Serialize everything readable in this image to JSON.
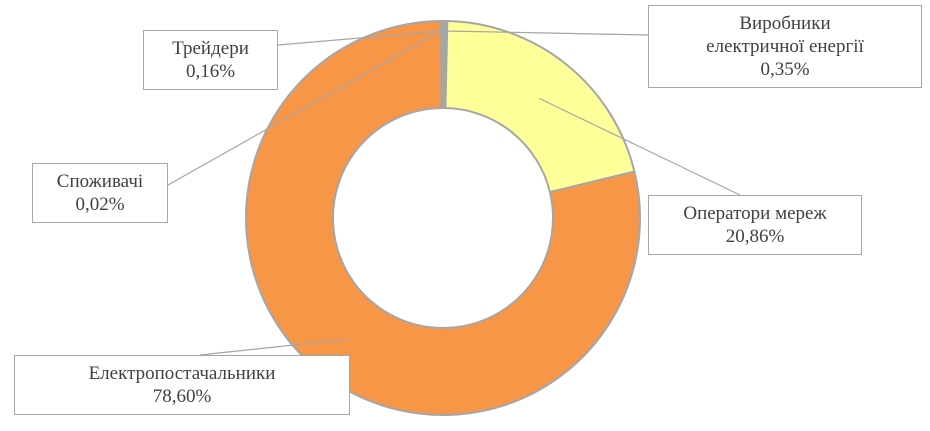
{
  "chart_data": {
    "type": "donut",
    "categories": [
      "Виробники електричної енергії",
      "Оператори мереж",
      "Електропостачальники",
      "Споживачі",
      "Трейдери"
    ],
    "values": [
      0.35,
      20.86,
      78.6,
      0.02,
      0.16
    ],
    "value_labels": [
      "0,35%",
      "20,86%",
      "78,60%",
      "0,02%",
      "0,16%"
    ],
    "colors": [
      "#a5a5a5",
      "#ffff99",
      "#f79646",
      "#4f81bd",
      "#9bbb59"
    ]
  }
}
